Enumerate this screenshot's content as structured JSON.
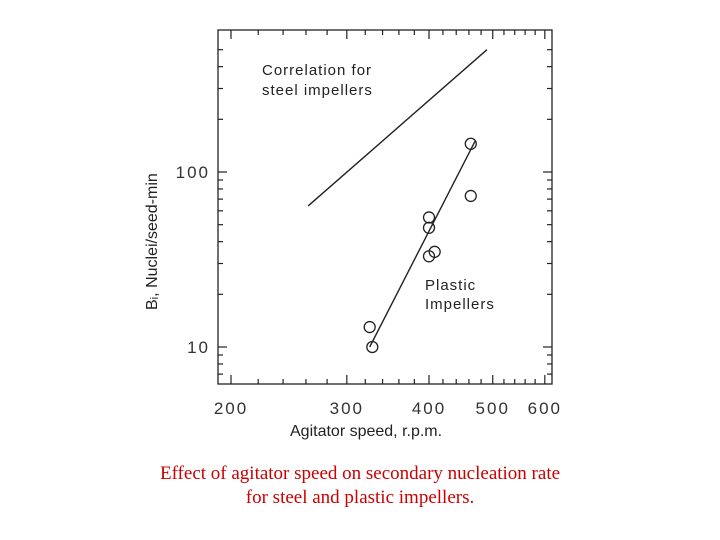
{
  "chart_data": {
    "type": "scatter",
    "x_scale": "log",
    "y_scale": "log",
    "xlim": [
      200,
      600
    ],
    "ylim": [
      6,
      500
    ],
    "xlabel": "Agitator speed,   r.p.m.",
    "ylabel": "Bᵢ,  Nuclei/seed-min",
    "x_ticks": [
      {
        "value": 200,
        "label": "200"
      },
      {
        "value": 300,
        "label": "300"
      },
      {
        "value": 400,
        "label": "400"
      },
      {
        "value": 500,
        "label": "500"
      },
      {
        "value": 600,
        "label": "600"
      }
    ],
    "y_ticks": [
      {
        "value": 10,
        "label": "10"
      },
      {
        "value": 100,
        "label": "100"
      }
    ],
    "series": [
      {
        "name": "Plastic Impellers",
        "kind": "scatter",
        "points": [
          {
            "x": 325,
            "y": 13
          },
          {
            "x": 328,
            "y": 10
          },
          {
            "x": 400,
            "y": 55
          },
          {
            "x": 400,
            "y": 48
          },
          {
            "x": 400,
            "y": 33
          },
          {
            "x": 408,
            "y": 35
          },
          {
            "x": 463,
            "y": 145
          },
          {
            "x": 463,
            "y": 73
          }
        ]
      },
      {
        "name": "Plastic Impellers fit",
        "kind": "line",
        "points": [
          {
            "x": 325,
            "y": 10
          },
          {
            "x": 470,
            "y": 150
          }
        ]
      },
      {
        "name": "Correlation for steel impellers",
        "kind": "line",
        "points": [
          {
            "x": 262,
            "y": 64
          },
          {
            "x": 490,
            "y": 500
          }
        ]
      }
    ],
    "annotations": {
      "steel_line1": "Correlation  for",
      "steel_line2": "steel  impellers",
      "plastic_line1": "Plastic",
      "plastic_line2": "Impellers"
    },
    "grid": false,
    "legend": "none"
  },
  "caption": {
    "line1": "Effect of agitator speed on secondary nucleation rate",
    "line2": "for steel and plastic impellers."
  },
  "colors": {
    "caption": "#cc0000",
    "ink": "#222222"
  }
}
